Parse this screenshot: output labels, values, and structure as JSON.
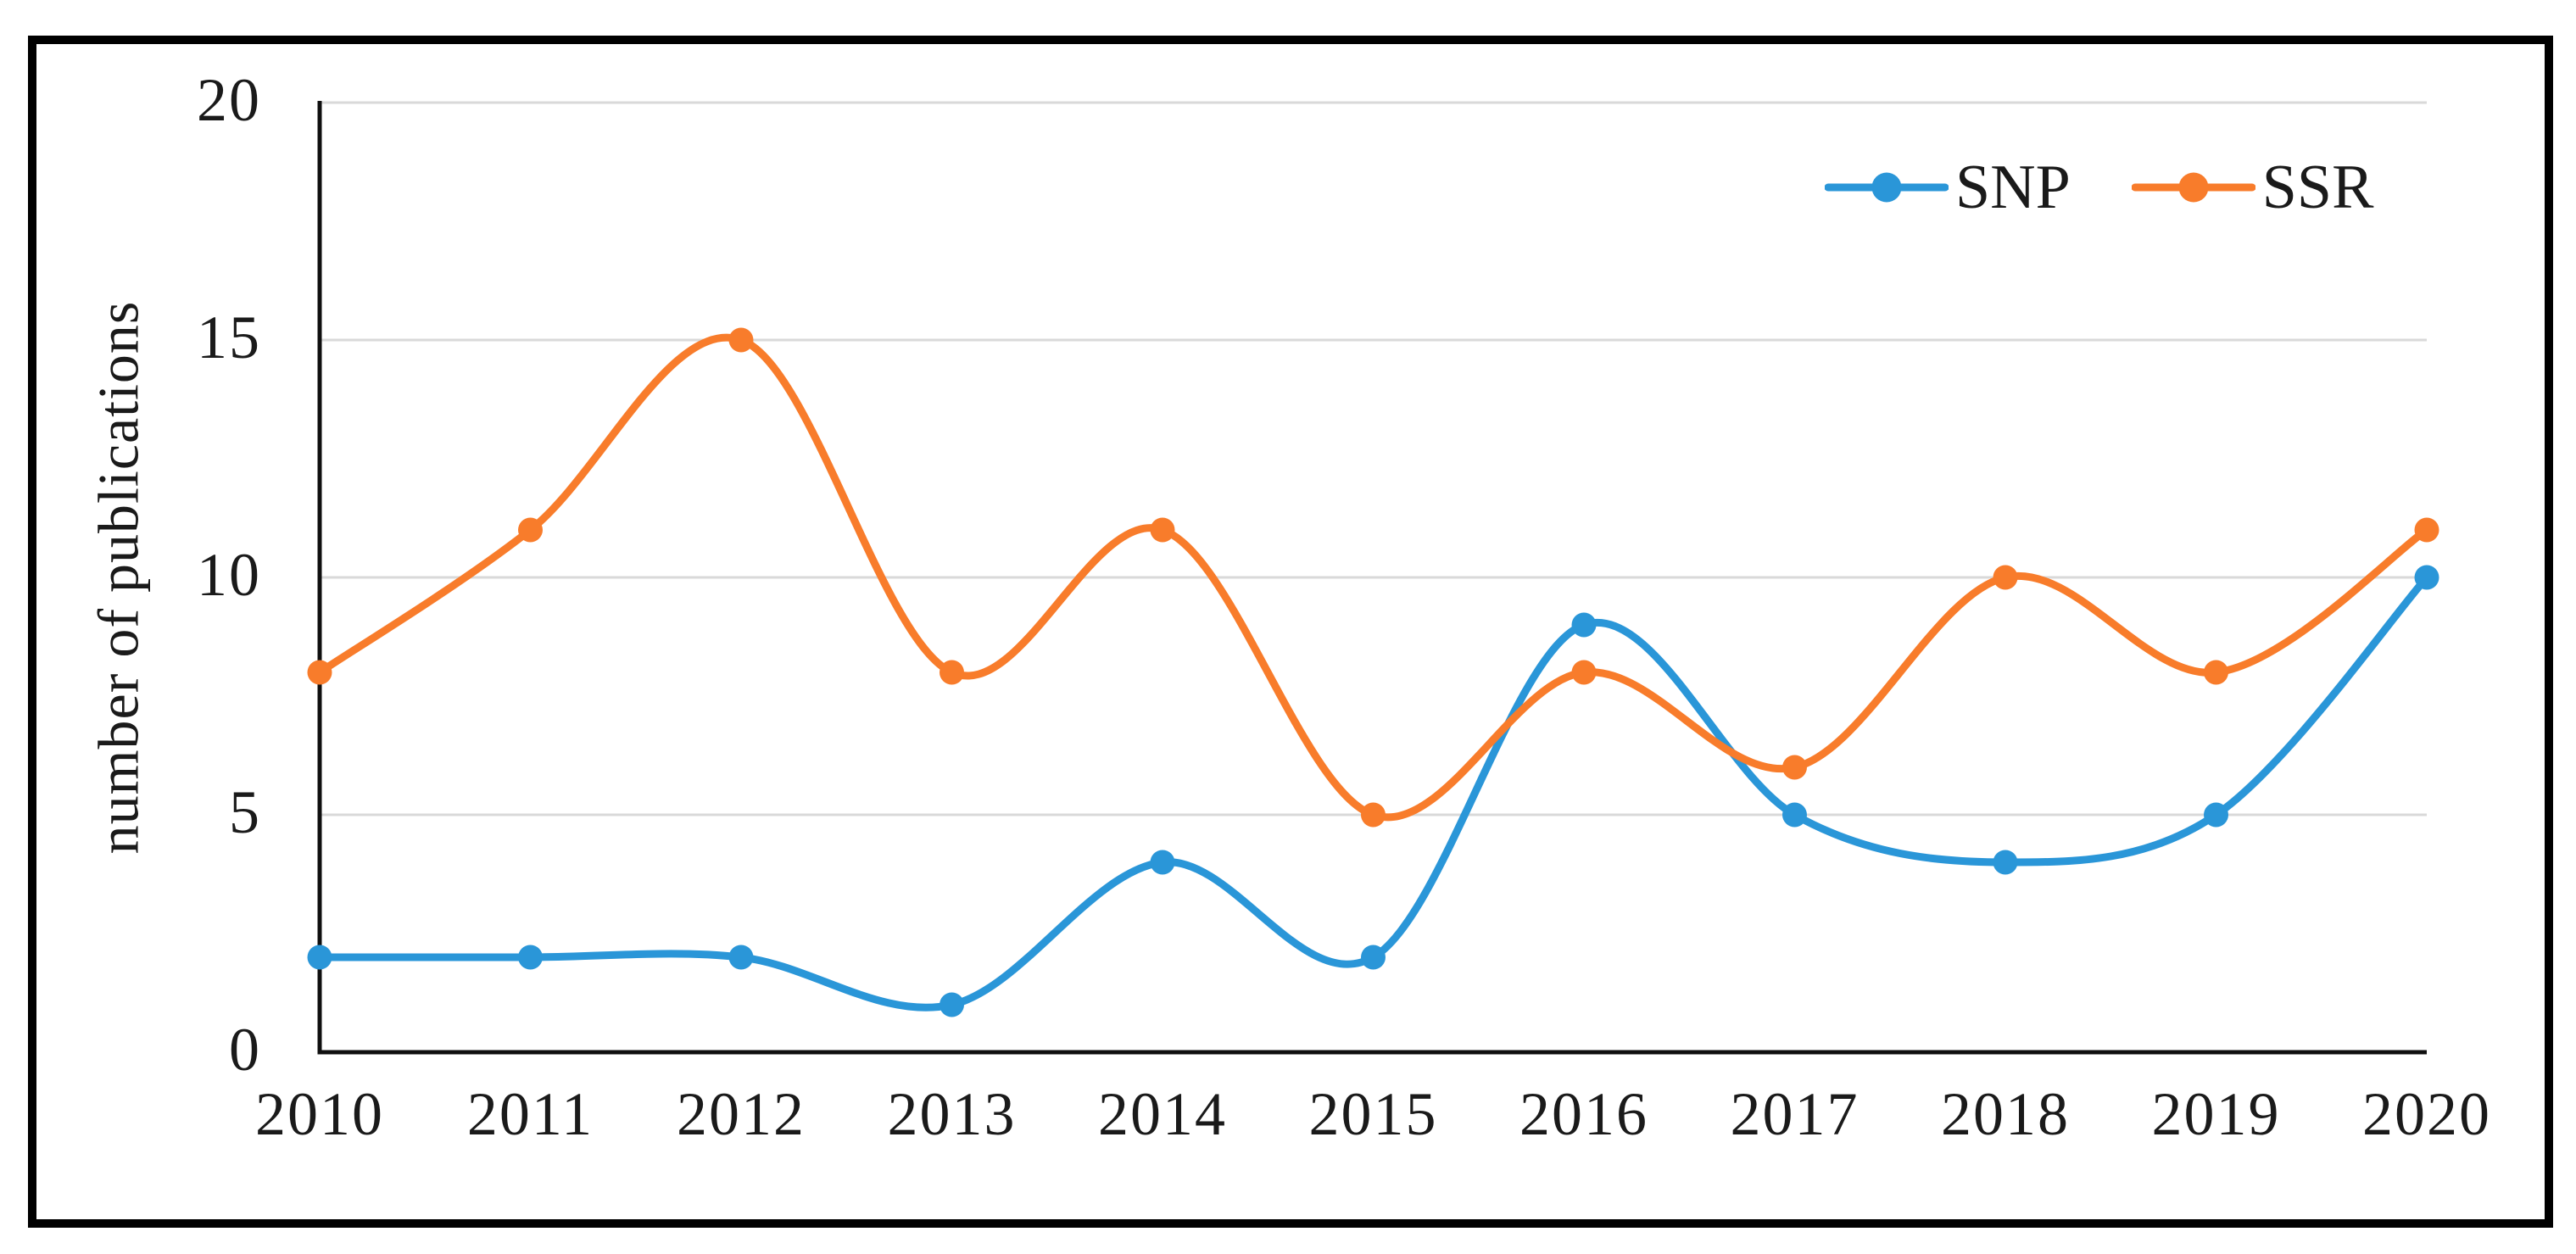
{
  "figure": {
    "background": "#ffffff",
    "border_color": "#000000"
  },
  "chart_data": {
    "type": "line",
    "title": "",
    "categories": [
      "2010",
      "2011",
      "2012",
      "2013",
      "2014",
      "2015",
      "2016",
      "2017",
      "2018",
      "2019",
      "2020"
    ],
    "series": [
      {
        "name": "SNP",
        "color": "#2A96D8",
        "values": [
          2,
          2,
          2,
          1,
          4,
          2,
          9,
          5,
          4,
          5,
          10
        ]
      },
      {
        "name": "SSR",
        "color": "#F87C2B",
        "values": [
          8,
          11,
          15,
          8,
          11,
          5,
          8,
          6,
          10,
          8,
          11
        ]
      }
    ],
    "xlabel": "",
    "ylabel": "number of publications",
    "ylim": [
      0,
      20
    ],
    "yticks": [
      0,
      5,
      10,
      15,
      20
    ],
    "grid": "horizontal",
    "gridline_color": "#D9D9D9",
    "axis_color": "#0f0f0f",
    "text_color": "#1a1a1a",
    "legend_position": "top-right",
    "line_style": "smooth",
    "marker": "circle"
  }
}
